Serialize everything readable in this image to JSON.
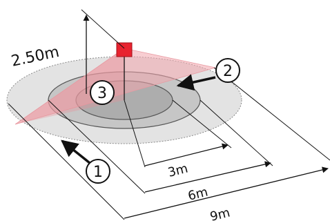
{
  "height_label": "2.50m",
  "radius_labels": {
    "inner": "3m",
    "middle": "6m",
    "outer": "9m"
  },
  "markers": {
    "m1": "1",
    "m2": "2",
    "m3": "3"
  },
  "colors": {
    "outer_zone": "#e3e3e3",
    "middle_zone": "#c6c6c6",
    "inner_zone": "#adadad",
    "beam": "#f2b4b8",
    "sensor": "#e8232f",
    "line": "#111111"
  }
}
